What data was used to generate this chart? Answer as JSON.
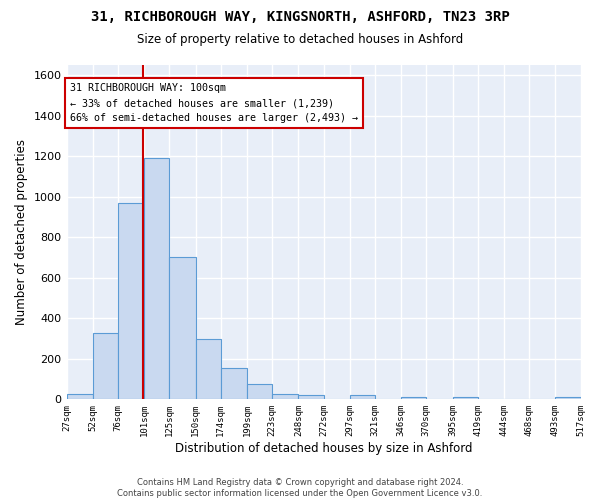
{
  "title": "31, RICHBOROUGH WAY, KINGSNORTH, ASHFORD, TN23 3RP",
  "subtitle": "Size of property relative to detached houses in Ashford",
  "xlabel": "Distribution of detached houses by size in Ashford",
  "ylabel": "Number of detached properties",
  "bar_edges": [
    27,
    52,
    76,
    101,
    125,
    150,
    174,
    199,
    223,
    248,
    272,
    297,
    321,
    346,
    370,
    395,
    419,
    444,
    468,
    493,
    517
  ],
  "bar_heights": [
    25,
    325,
    970,
    1190,
    700,
    300,
    155,
    75,
    25,
    20,
    0,
    20,
    0,
    10,
    0,
    10,
    0,
    0,
    0,
    10
  ],
  "bar_color": "#c9d9f0",
  "bar_edge_color": "#5b9bd5",
  "vline_x": 100,
  "vline_color": "#cc0000",
  "annotation_line1": "31 RICHBOROUGH WAY: 100sqm",
  "annotation_line2": "← 33% of detached houses are smaller (1,239)",
  "annotation_line3": "66% of semi-detached houses are larger (2,493) →",
  "annotation_box_color": "#ffffff",
  "annotation_box_edgecolor": "#cc0000",
  "ylim": [
    0,
    1650
  ],
  "yticks": [
    0,
    200,
    400,
    600,
    800,
    1000,
    1200,
    1400,
    1600
  ],
  "footer_text": "Contains HM Land Registry data © Crown copyright and database right 2024.\nContains public sector information licensed under the Open Government Licence v3.0.",
  "plot_bg_color": "#e8eef8",
  "fig_bg_color": "#ffffff",
  "grid_color": "#ffffff",
  "tick_labels": [
    "27sqm",
    "52sqm",
    "76sqm",
    "101sqm",
    "125sqm",
    "150sqm",
    "174sqm",
    "199sqm",
    "223sqm",
    "248sqm",
    "272sqm",
    "297sqm",
    "321sqm",
    "346sqm",
    "370sqm",
    "395sqm",
    "419sqm",
    "444sqm",
    "468sqm",
    "493sqm",
    "517sqm"
  ]
}
